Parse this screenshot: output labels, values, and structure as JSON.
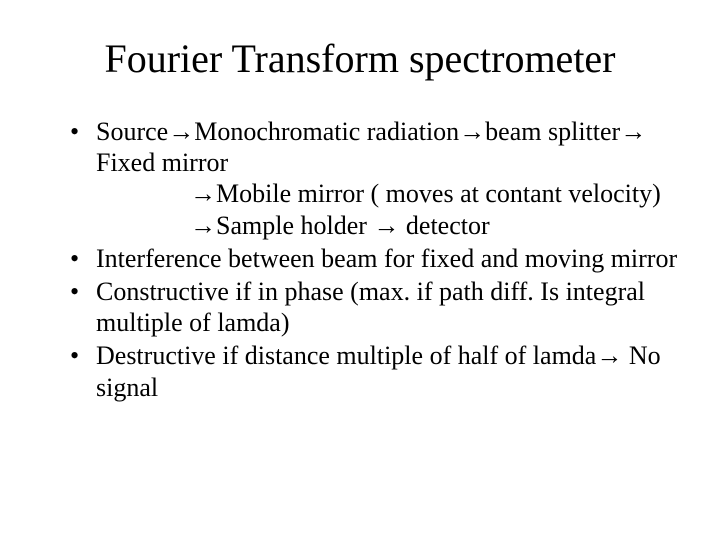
{
  "slide": {
    "title": "Fourier Transform spectrometer",
    "bullets": [
      {
        "line1": "Source→Monochromatic radiation→beam splitter→ Fixed mirror",
        "indent1": "→Mobile mirror ( moves at contant velocity) →Sample holder → detector"
      },
      {
        "line1": "Interference between beam for fixed and moving mirror"
      },
      {
        "line1": "Constructive if in phase (max. if path diff. Is integral multiple of lamda)"
      },
      {
        "line1": "Destructive if distance multiple of half of lamda→ No signal"
      }
    ]
  },
  "style": {
    "background_color": "#ffffff",
    "text_color": "#000000",
    "font_family": "Times New Roman",
    "title_fontsize": 40,
    "body_fontsize": 26,
    "title_weight": 400,
    "body_weight": 400,
    "bullet_glyph": "•",
    "arrow_glyph": "→",
    "slide_width": 720,
    "slide_height": 540
  }
}
